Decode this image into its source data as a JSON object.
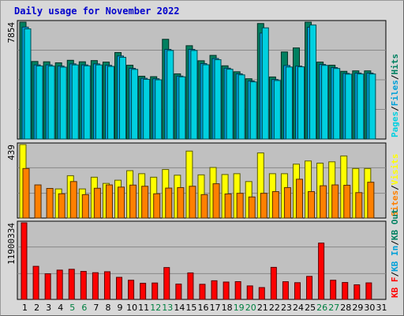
{
  "title": "Daily usage for November 2022",
  "colors": {
    "background": "#c0c0c0",
    "pages": "#00d0e0",
    "files": "#00a0d8",
    "hits": "#008060",
    "visits": "#ffff00",
    "sites": "#ff8000",
    "kbytes": "#ff0000",
    "weekend_tick": "#008040"
  },
  "chart_data": [
    {
      "type": "bar",
      "panel": "hits-files-pages",
      "ylabel_parts": [
        "Pages",
        "/",
        "Files",
        "/",
        "Hits"
      ],
      "ymax_label": "7854",
      "ylim": [
        0,
        7854
      ],
      "categories": [
        "1",
        "2",
        "3",
        "4",
        "5",
        "6",
        "7",
        "8",
        "9",
        "10",
        "11",
        "12",
        "13",
        "14",
        "15",
        "16",
        "17",
        "18",
        "19",
        "20",
        "21",
        "22",
        "23",
        "24",
        "25",
        "26",
        "27",
        "28",
        "29",
        "30",
        "31"
      ],
      "series": [
        {
          "name": "Hits",
          "values": [
            7854,
            5210,
            5190,
            5120,
            5290,
            5190,
            5270,
            5170,
            5810,
            4960,
            4220,
            4190,
            6700,
            4380,
            6270,
            5260,
            5620,
            4920,
            4520,
            4050,
            7760,
            4170,
            5850,
            6120,
            7850,
            5170,
            4960,
            4550,
            4580,
            4580,
            0
          ]
        },
        {
          "name": "Files",
          "values": [
            7520,
            4980,
            4980,
            4900,
            5050,
            4980,
            5050,
            4950,
            5580,
            4750,
            4080,
            4050,
            6020,
            4230,
            6020,
            5070,
            5410,
            4760,
            4380,
            3900,
            7120,
            4000,
            4940,
            4900,
            7510,
            5010,
            4800,
            4410,
            4430,
            4430,
            0
          ]
        },
        {
          "name": "Pages",
          "values": [
            7400,
            4910,
            4900,
            4830,
            4980,
            4920,
            4980,
            4880,
            5490,
            4680,
            4010,
            3980,
            5950,
            4180,
            5950,
            4990,
            5330,
            4690,
            4310,
            3840,
            7470,
            3930,
            4840,
            4850,
            7660,
            4950,
            4740,
            4360,
            4370,
            4370,
            0
          ]
        }
      ]
    },
    {
      "type": "bar",
      "panel": "sites-visits",
      "ylabel_parts": [
        "Sites",
        "/",
        "Visits"
      ],
      "ymax_label": "439",
      "ylim": [
        0,
        439
      ],
      "categories": [
        "1",
        "2",
        "3",
        "4",
        "5",
        "6",
        "7",
        "8",
        "9",
        "10",
        "11",
        "12",
        "13",
        "14",
        "15",
        "16",
        "17",
        "18",
        "19",
        "20",
        "21",
        "22",
        "23",
        "24",
        "25",
        "26",
        "27",
        "28",
        "29",
        "30",
        "31"
      ],
      "series": [
        {
          "name": "Visits",
          "values": [
            439,
            0,
            0,
            174,
            253,
            174,
            244,
            207,
            226,
            283,
            265,
            244,
            290,
            256,
            400,
            258,
            302,
            260,
            265,
            218,
            389,
            265,
            265,
            322,
            341,
            328,
            336,
            371,
            296,
            296,
            0
          ]
        },
        {
          "name": "Sites",
          "values": [
            296,
            198,
            177,
            145,
            218,
            140,
            178,
            198,
            185,
            197,
            190,
            145,
            179,
            182,
            190,
            140,
            205,
            144,
            148,
            126,
            148,
            158,
            182,
            232,
            158,
            193,
            198,
            196,
            152,
            214,
            0
          ]
        }
      ]
    },
    {
      "type": "bar",
      "panel": "kbytes",
      "ylabel_parts": [
        "KB F",
        "/",
        "KB In",
        "/",
        "KB Out"
      ],
      "ymax_label": "11900334",
      "ylim": [
        0,
        11900334
      ],
      "categories": [
        "1",
        "2",
        "3",
        "4",
        "5",
        "6",
        "7",
        "8",
        "9",
        "10",
        "11",
        "12",
        "13",
        "14",
        "15",
        "16",
        "17",
        "18",
        "19",
        "20",
        "21",
        "22",
        "23",
        "24",
        "25",
        "26",
        "27",
        "28",
        "29",
        "30",
        "31"
      ],
      "series": [
        {
          "name": "KB F",
          "values": [
            11900334,
            5140000,
            3980000,
            4550000,
            4680000,
            4350000,
            4150000,
            4300000,
            3430000,
            2980000,
            2510000,
            2550000,
            4950000,
            2380000,
            4120000,
            2350000,
            2900000,
            2700000,
            2760000,
            2100000,
            1840000,
            4980000,
            2750000,
            2600000,
            3580000,
            8750000,
            2980000,
            2630000,
            2270000,
            2570000,
            0
          ]
        }
      ]
    }
  ],
  "x_ticks": {
    "labels": [
      "1",
      "2",
      "3",
      "4",
      "5",
      "6",
      "7",
      "8",
      "9",
      "10",
      "11",
      "12",
      "13",
      "14",
      "15",
      "16",
      "17",
      "18",
      "19",
      "20",
      "21",
      "22",
      "23",
      "24",
      "25",
      "26",
      "27",
      "28",
      "29",
      "30",
      "31"
    ],
    "weekend": [
      "5",
      "6",
      "12",
      "13",
      "19",
      "20",
      "26",
      "27"
    ]
  }
}
